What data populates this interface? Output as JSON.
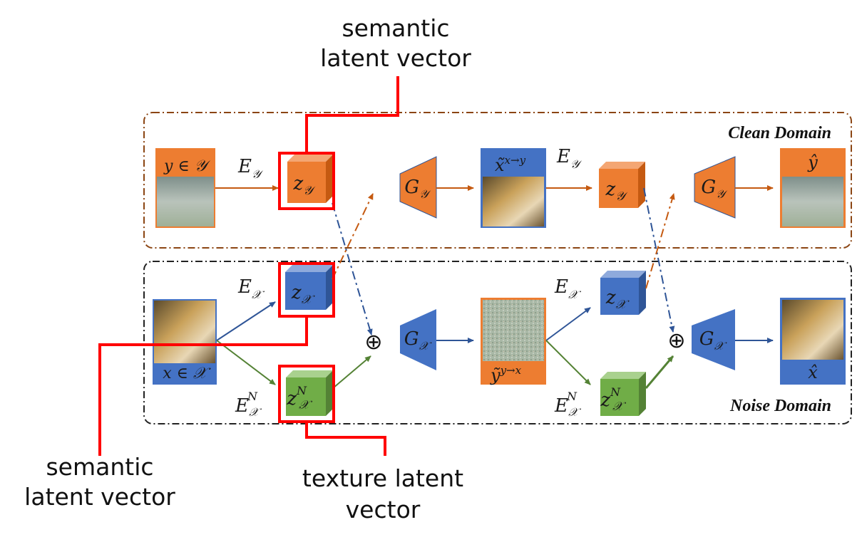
{
  "callouts": {
    "top": [
      "semantic",
      "latent vector"
    ],
    "bottom_left": [
      "semantic",
      "latent vector"
    ],
    "bottom_center": [
      "texture latent",
      "vector"
    ]
  },
  "domains": {
    "clean": "Clean Domain",
    "noise": "Noise Domain"
  },
  "images": {
    "clean_input_label": "y ∈ 𝒴",
    "noise_input_label": "x ∈ 𝒳",
    "translated_clean_label": "x̃",
    "translated_clean_sup": "x→y",
    "translated_noise_label": "ỹ",
    "translated_noise_sup": "y→x",
    "clean_output_label": "ŷ",
    "noise_output_label": "x̂"
  },
  "encoders": {
    "E_y_1": {
      "base": "E",
      "sub": "𝒴"
    },
    "E_y_2": {
      "base": "E",
      "sub": "𝒴"
    },
    "E_x_1": {
      "base": "E",
      "sub": "𝒳"
    },
    "E_x_2": {
      "base": "E",
      "sub": "𝒳"
    },
    "E_xN_1": {
      "base": "E",
      "sub": "𝒳",
      "sup": "N"
    },
    "E_xN_2": {
      "base": "E",
      "sub": "𝒳",
      "sup": "N"
    }
  },
  "latents": {
    "z_y_1": {
      "base": "z",
      "sub": "𝒴"
    },
    "z_y_2": {
      "base": "z",
      "sub": "𝒴"
    },
    "z_x_1": {
      "base": "z",
      "sub": "𝒳"
    },
    "z_x_2": {
      "base": "z",
      "sub": "𝒳"
    },
    "z_xN_1": {
      "base": "z",
      "sub": "𝒳",
      "sup": "N"
    },
    "z_xN_2": {
      "base": "z",
      "sub": "𝒳",
      "sup": "N"
    }
  },
  "generators": {
    "G_y_1": {
      "base": "G",
      "sub": "𝒴"
    },
    "G_y_2": {
      "base": "G",
      "sub": "𝒴"
    },
    "G_x_1": {
      "base": "G",
      "sub": "𝒳"
    },
    "G_x_2": {
      "base": "G",
      "sub": "𝒳"
    }
  },
  "combine_symbol": "⊕",
  "colors": {
    "orange": "#ED7D31",
    "blue": "#4472C4",
    "green": "#70AD47",
    "highlight": "#FF0000",
    "clean_border": "#8B4513",
    "noise_border": "#222222"
  }
}
